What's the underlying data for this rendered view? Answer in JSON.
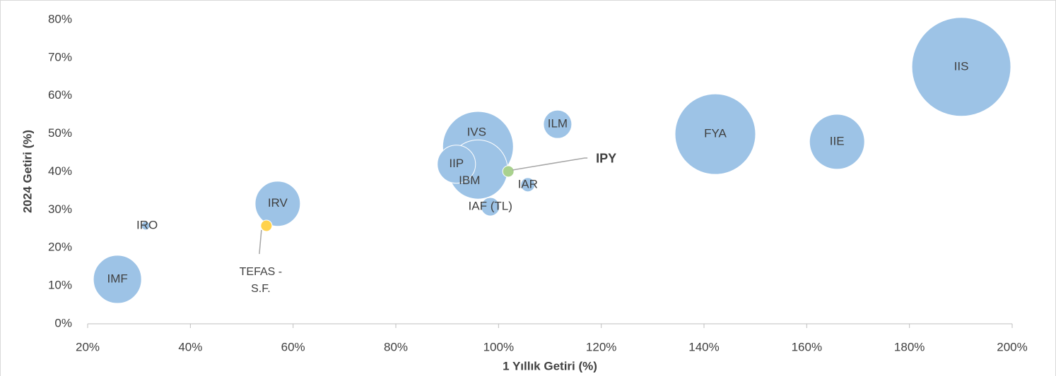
{
  "chart_data": {
    "type": "bubble",
    "xlabel": "1 Yıllık Getiri (%)",
    "ylabel": "2024 Getiri (%)",
    "labels": [
      "IIS",
      "FYA",
      "IIE",
      "ILM",
      "IVS",
      "IBM",
      "IIP",
      "IAR",
      "IAF (TL)",
      "IRV",
      "IRO",
      "IMF",
      "TEFAS - S.F.",
      "IPY"
    ],
    "x": [
      190.1,
      142.2,
      165.9,
      111.5,
      96.0,
      96.0,
      91.8,
      105.7,
      98.4,
      57.0,
      31.3,
      25.8,
      54.8,
      101.9
    ],
    "values": [
      67.6,
      49.9,
      47.9,
      52.5,
      46.6,
      40.6,
      42.0,
      36.6,
      30.8,
      31.6,
      25.8,
      11.7,
      25.8,
      40.1
    ],
    "sizes": [
      49,
      32.5,
      15.2,
      4,
      25,
      17.6,
      7.3,
      1,
      1.7,
      10.2,
      0.36,
      11.6,
      0.64,
      0.64
    ],
    "colors": [
      "#9dc3e6",
      "#9dc3e6",
      "#9dc3e6",
      "#9dc3e6",
      "#9dc3e6",
      "#9dc3e6",
      "#9dc3e6",
      "#9dc3e6",
      "#9dc3e6",
      "#9dc3e6",
      "#9dc3e6",
      "#9dc3e6",
      "#ffd24d",
      "#a9d18e"
    ],
    "xlim": [
      20,
      200
    ],
    "xticks": [
      {
        "value": 20,
        "label": "20%"
      },
      {
        "value": 40,
        "label": "40%"
      },
      {
        "value": 60,
        "label": "60%"
      },
      {
        "value": 80,
        "label": "80%"
      },
      {
        "value": 100,
        "label": "100%"
      },
      {
        "value": 120,
        "label": "120%"
      },
      {
        "value": 140,
        "label": "140%"
      },
      {
        "value": 160,
        "label": "160%"
      },
      {
        "value": 180,
        "label": "180%"
      },
      {
        "value": 200,
        "label": "200%"
      }
    ],
    "ylim": [
      0,
      80
    ],
    "yticks": [
      {
        "value": 0,
        "label": "0%"
      },
      {
        "value": 10,
        "label": "10%"
      },
      {
        "value": 20,
        "label": "20%"
      },
      {
        "value": 30,
        "label": "30%"
      },
      {
        "value": 40,
        "label": "40%"
      },
      {
        "value": 50,
        "label": "50%"
      },
      {
        "value": 60,
        "label": "60%"
      },
      {
        "value": 70,
        "label": "70%"
      },
      {
        "value": 80,
        "label": "80%"
      }
    ]
  }
}
